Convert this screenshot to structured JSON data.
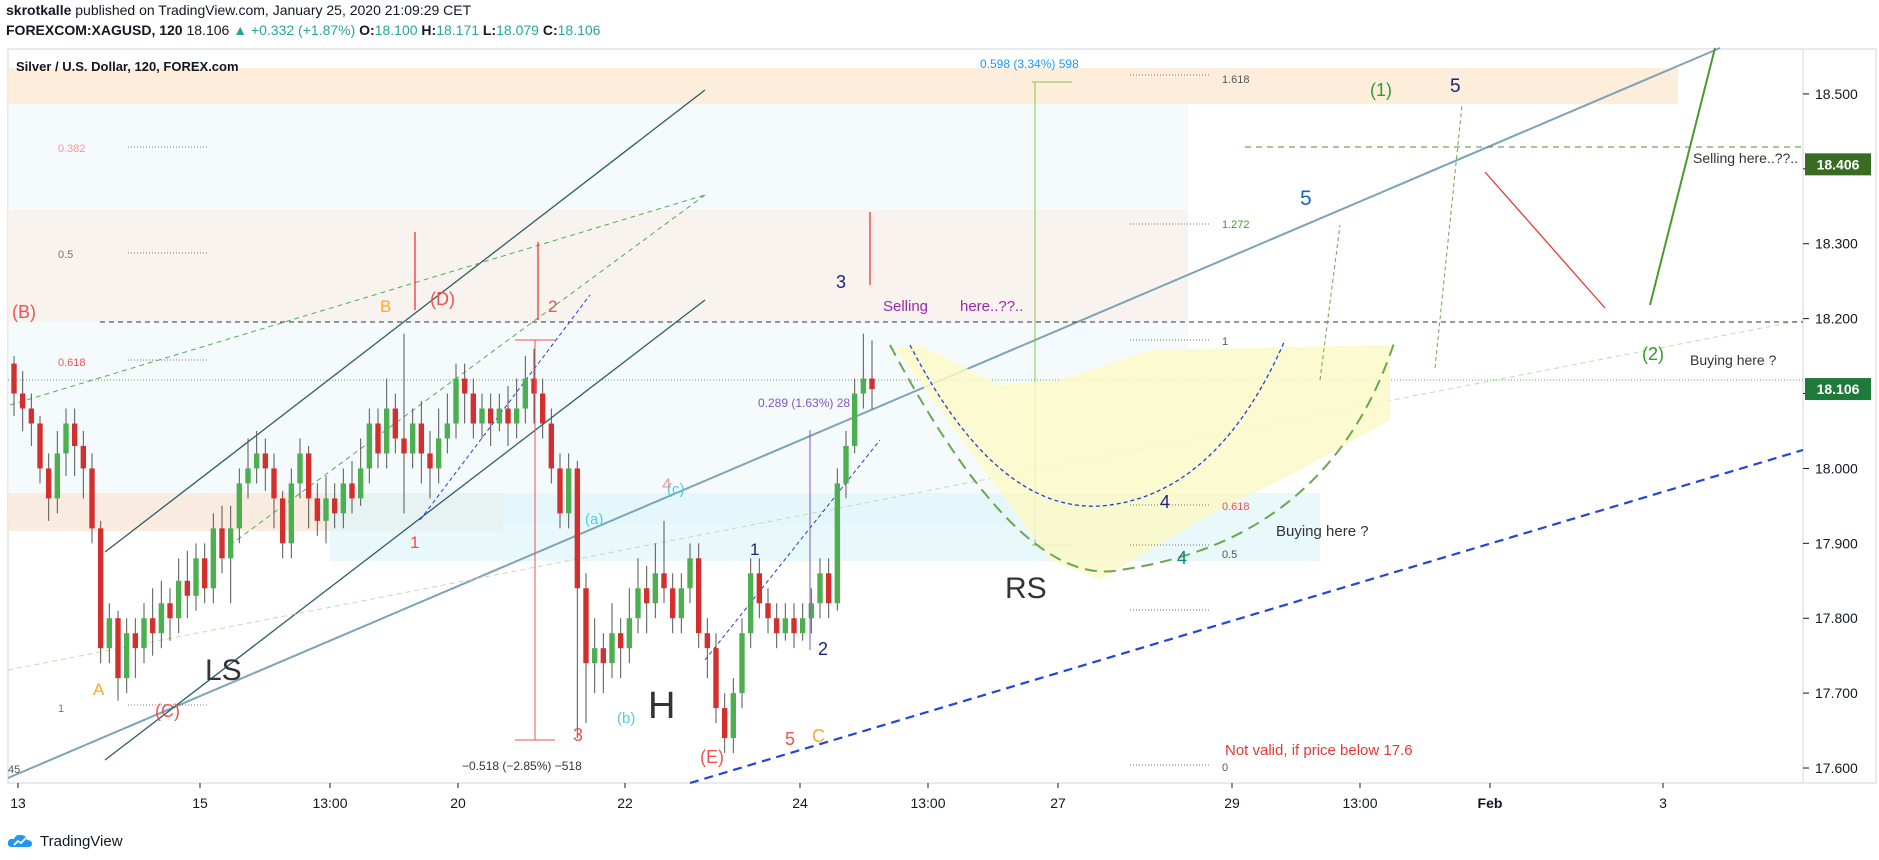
{
  "header": {
    "author": "skrotkalle",
    "published_text": "published on TradingView.com, January 25, 2020 21:09:29 CET",
    "symbol": "FOREXCOM:XAGUSD, 120",
    "last_price": "18.106",
    "change": "+0.332 (+1.87%)",
    "o_label": "O:",
    "o_value": "18.100",
    "h_label": "H:",
    "h_value": "18.171",
    "l_label": "L:",
    "l_value": "18.079",
    "c_label": "C:",
    "c_value": "18.106"
  },
  "footer": {
    "brand": "TradingView"
  },
  "chart_data": {
    "type": "candlestick",
    "title": "Silver / U.S. Dollar, 120, FOREX.com",
    "price_axis": {
      "range": [
        17.58,
        18.62
      ],
      "ticks": [
        "17.600",
        "17.700",
        "17.800",
        "17.900",
        "18.000",
        "18.100",
        "18.200",
        "18.300",
        "18.400",
        "18.500"
      ],
      "labels": [
        {
          "text": "18.406",
          "color": "#3a6b23"
        },
        {
          "text": "18.106",
          "color": "#1f7a3a"
        }
      ]
    },
    "time_axis": {
      "ticks": [
        "13",
        "15",
        "13:00",
        "20",
        "22",
        "24",
        "13:00",
        "27",
        "29",
        "13:00",
        "Feb",
        "3"
      ]
    },
    "candles": [
      [
        18.14,
        18.1,
        18.15,
        18.07
      ],
      [
        18.1,
        18.08,
        18.13,
        18.05
      ],
      [
        18.08,
        18.06,
        18.1,
        18.03
      ],
      [
        18.06,
        18.0,
        18.07,
        17.98
      ],
      [
        18.0,
        17.96,
        18.02,
        17.93
      ],
      [
        17.96,
        18.02,
        18.05,
        17.94
      ],
      [
        18.02,
        18.06,
        18.08,
        17.99
      ],
      [
        18.06,
        18.03,
        18.08,
        17.99
      ],
      [
        18.03,
        18.0,
        18.05,
        17.96
      ],
      [
        18.0,
        17.92,
        18.02,
        17.9
      ],
      [
        17.92,
        17.76,
        17.93,
        17.74
      ],
      [
        17.76,
        17.8,
        17.82,
        17.74
      ],
      [
        17.8,
        17.72,
        17.81,
        17.69
      ],
      [
        17.72,
        17.78,
        17.8,
        17.7
      ],
      [
        17.78,
        17.76,
        17.8,
        17.72
      ],
      [
        17.76,
        17.8,
        17.82,
        17.74
      ],
      [
        17.8,
        17.78,
        17.84,
        17.75
      ],
      [
        17.78,
        17.82,
        17.85,
        17.76
      ],
      [
        17.82,
        17.8,
        17.84,
        17.77
      ],
      [
        17.8,
        17.85,
        17.88,
        17.78
      ],
      [
        17.85,
        17.83,
        17.89,
        17.8
      ],
      [
        17.83,
        17.88,
        17.9,
        17.81
      ],
      [
        17.88,
        17.84,
        17.9,
        17.82
      ],
      [
        17.84,
        17.92,
        17.94,
        17.82
      ],
      [
        17.92,
        17.88,
        17.95,
        17.86
      ],
      [
        17.88,
        17.92,
        17.95,
        17.82
      ],
      [
        17.92,
        17.98,
        18.0,
        17.9
      ],
      [
        17.98,
        18.0,
        18.04,
        17.96
      ],
      [
        18.0,
        18.02,
        18.05,
        17.98
      ],
      [
        18.02,
        18.0,
        18.04,
        17.97
      ],
      [
        18.0,
        17.96,
        18.02,
        17.92
      ],
      [
        17.96,
        17.9,
        17.97,
        17.88
      ],
      [
        17.9,
        17.98,
        18.0,
        17.88
      ],
      [
        17.98,
        18.02,
        18.04,
        17.96
      ],
      [
        18.02,
        17.96,
        18.03,
        17.92
      ],
      [
        17.96,
        17.93,
        17.98,
        17.91
      ],
      [
        17.93,
        17.96,
        17.99,
        17.9
      ],
      [
        17.96,
        17.94,
        17.98,
        17.92
      ],
      [
        17.94,
        17.98,
        18.0,
        17.92
      ],
      [
        17.98,
        17.96,
        18.01,
        17.94
      ],
      [
        17.96,
        18.0,
        18.04,
        17.95
      ],
      [
        18.0,
        18.06,
        18.08,
        17.98
      ],
      [
        18.06,
        18.02,
        18.08,
        18.0
      ],
      [
        18.02,
        18.08,
        18.12,
        18.0
      ],
      [
        18.08,
        18.04,
        18.1,
        18.02
      ],
      [
        18.04,
        18.02,
        18.18,
        17.94
      ],
      [
        18.02,
        18.06,
        18.08,
        18.0
      ],
      [
        18.06,
        18.02,
        18.09,
        17.98
      ],
      [
        18.02,
        18.0,
        18.05,
        17.96
      ],
      [
        18.0,
        18.04,
        18.08,
        17.98
      ],
      [
        18.04,
        18.06,
        18.1,
        18.02
      ],
      [
        18.06,
        18.12,
        18.14,
        18.04
      ],
      [
        18.12,
        18.1,
        18.14,
        18.06
      ],
      [
        18.1,
        18.06,
        18.12,
        18.04
      ],
      [
        18.06,
        18.08,
        18.1,
        18.04
      ],
      [
        18.08,
        18.06,
        18.1,
        18.03
      ],
      [
        18.06,
        18.08,
        18.1,
        18.05
      ],
      [
        18.08,
        18.06,
        18.11,
        18.03
      ],
      [
        18.06,
        18.08,
        18.12,
        18.04
      ],
      [
        18.08,
        18.12,
        18.15,
        18.06
      ],
      [
        18.12,
        18.1,
        18.16,
        18.06
      ],
      [
        18.1,
        18.06,
        18.12,
        18.04
      ],
      [
        18.06,
        18.0,
        18.08,
        17.98
      ],
      [
        18.0,
        17.94,
        18.02,
        17.92
      ],
      [
        17.94,
        18.0,
        18.02,
        17.92
      ],
      [
        18.0,
        17.84,
        18.01,
        17.64
      ],
      [
        17.84,
        17.74,
        17.86,
        17.66
      ],
      [
        17.74,
        17.76,
        17.8,
        17.7
      ],
      [
        17.76,
        17.74,
        17.78,
        17.7
      ],
      [
        17.74,
        17.78,
        17.82,
        17.72
      ],
      [
        17.78,
        17.76,
        17.8,
        17.72
      ],
      [
        17.76,
        17.8,
        17.84,
        17.74
      ],
      [
        17.8,
        17.84,
        17.88,
        17.78
      ],
      [
        17.84,
        17.82,
        17.87,
        17.78
      ],
      [
        17.82,
        17.86,
        17.9,
        17.8
      ],
      [
        17.86,
        17.84,
        17.93,
        17.82
      ],
      [
        17.84,
        17.8,
        17.86,
        17.78
      ],
      [
        17.8,
        17.84,
        17.86,
        17.78
      ],
      [
        17.84,
        17.88,
        17.9,
        17.82
      ],
      [
        17.88,
        17.78,
        17.9,
        17.76
      ],
      [
        17.78,
        17.76,
        17.8,
        17.72
      ],
      [
        17.76,
        17.68,
        17.78,
        17.66
      ],
      [
        17.68,
        17.64,
        17.7,
        17.62
      ],
      [
        17.64,
        17.7,
        17.72,
        17.62
      ],
      [
        17.7,
        17.78,
        17.8,
        17.68
      ],
      [
        17.78,
        17.86,
        17.88,
        17.76
      ],
      [
        17.86,
        17.82,
        17.88,
        17.8
      ],
      [
        17.82,
        17.8,
        17.84,
        17.78
      ],
      [
        17.8,
        17.78,
        17.82,
        17.76
      ],
      [
        17.78,
        17.8,
        17.82,
        17.77
      ],
      [
        17.8,
        17.78,
        17.82,
        17.76
      ],
      [
        17.78,
        17.8,
        17.82,
        17.77
      ],
      [
        17.8,
        17.82,
        17.84,
        17.78
      ],
      [
        17.82,
        17.86,
        17.88,
        17.8
      ],
      [
        17.86,
        17.82,
        17.88,
        17.8
      ],
      [
        17.82,
        17.98,
        18.0,
        17.81
      ],
      [
        17.98,
        18.03,
        18.05,
        17.96
      ],
      [
        18.03,
        18.1,
        18.12,
        18.02
      ],
      [
        18.1,
        18.12,
        18.18,
        18.08
      ],
      [
        18.12,
        18.106,
        18.171,
        18.079
      ]
    ],
    "annotation_labels": [
      {
        "text": "0.598 (3.34%) 598",
        "color": "#2196f3",
        "size": 12
      },
      {
        "text": "1.618",
        "color": "#555",
        "size": 11
      },
      {
        "text": "0.382",
        "color": "#ef9a9a",
        "size": 11
      },
      {
        "text": "0.5",
        "color": "#777",
        "size": 11
      },
      {
        "text": "1.272",
        "color": "#558b2f",
        "size": 11
      },
      {
        "text": "(B)",
        "color": "#ef5350",
        "size": 18
      },
      {
        "text": "B",
        "color": "#ffa726",
        "size": 17
      },
      {
        "text": "(D)",
        "color": "#ef5350",
        "size": 18
      },
      {
        "text": "2",
        "color": "#ef5350",
        "size": 17
      },
      {
        "text": "3",
        "color": "#1a237e",
        "size": 18
      },
      {
        "text": "Selling",
        "color": "#9c27b0",
        "size": 15
      },
      {
        "text": "here..??..",
        "color": "#9c27b0",
        "size": 15
      },
      {
        "text": "0.618",
        "color": "#ef5350",
        "size": 11
      },
      {
        "text": "1",
        "color": "#555",
        "size": 11
      },
      {
        "text": "(1)",
        "color": "#2e9e2e",
        "size": 18
      },
      {
        "text": "5",
        "color": "#1a237e",
        "size": 19
      },
      {
        "text": "5",
        "color": "#1565c0",
        "size": 21
      },
      {
        "text": "Selling here..??..",
        "color": "#333",
        "size": 14
      },
      {
        "text": "(2)",
        "color": "#2e9e2e",
        "size": 18
      },
      {
        "text": "Buying here ?",
        "color": "#333",
        "size": 14
      },
      {
        "text": "0.289 (1.63%) 28",
        "color": "#7e57c2",
        "size": 12
      },
      {
        "text": "4",
        "color": "#ef9a9a",
        "size": 17
      },
      {
        "text": "(c)",
        "color": "#4dd0e1",
        "size": 15
      },
      {
        "text": "(a)",
        "color": "#4dd0e1",
        "size": 15
      },
      {
        "text": "1",
        "color": "#ef5350",
        "size": 17
      },
      {
        "text": "1",
        "color": "#1a237e",
        "size": 17
      },
      {
        "text": "4",
        "color": "#1a237e",
        "size": 18
      },
      {
        "text": "0.618",
        "color": "#ef5350",
        "size": 11
      },
      {
        "text": "Buying here ?",
        "color": "#333",
        "size": 15
      },
      {
        "text": "4",
        "color": "#00897b",
        "size": 18
      },
      {
        "text": "0.5",
        "color": "#555",
        "size": 11
      },
      {
        "text": "RS",
        "color": "#333",
        "size": 30
      },
      {
        "text": "2",
        "color": "#1a237e",
        "size": 18
      },
      {
        "text": "LS",
        "color": "#333",
        "size": 30
      },
      {
        "text": "A",
        "color": "#ffa726",
        "size": 17
      },
      {
        "text": "(C)",
        "color": "#ef5350",
        "size": 18
      },
      {
        "text": "1",
        "color": "#777",
        "size": 11
      },
      {
        "text": "H",
        "color": "#333",
        "size": 38
      },
      {
        "text": "(b)",
        "color": "#4dd0e1",
        "size": 15
      },
      {
        "text": "3",
        "color": "#ef5350",
        "size": 18
      },
      {
        "text": "(E)",
        "color": "#ef5350",
        "size": 18
      },
      {
        "text": "5",
        "color": "#ef5350",
        "size": 18
      },
      {
        "text": "C",
        "color": "#ffa726",
        "size": 18
      },
      {
        "text": "−0.518 (−2.85%) −518",
        "color": "#333",
        "size": 12
      },
      {
        "text": "Not valid, if price below 17.6",
        "color": "#e53935",
        "size": 15
      },
      {
        "text": "0",
        "color": "#555",
        "size": 11
      },
      {
        "text": "45",
        "color": "#555",
        "size": 11
      }
    ]
  },
  "colors": {
    "up": "#4caf50",
    "down": "#d32f2f",
    "axis_text": "#131722",
    "grid_border": "#d1d4dc"
  }
}
